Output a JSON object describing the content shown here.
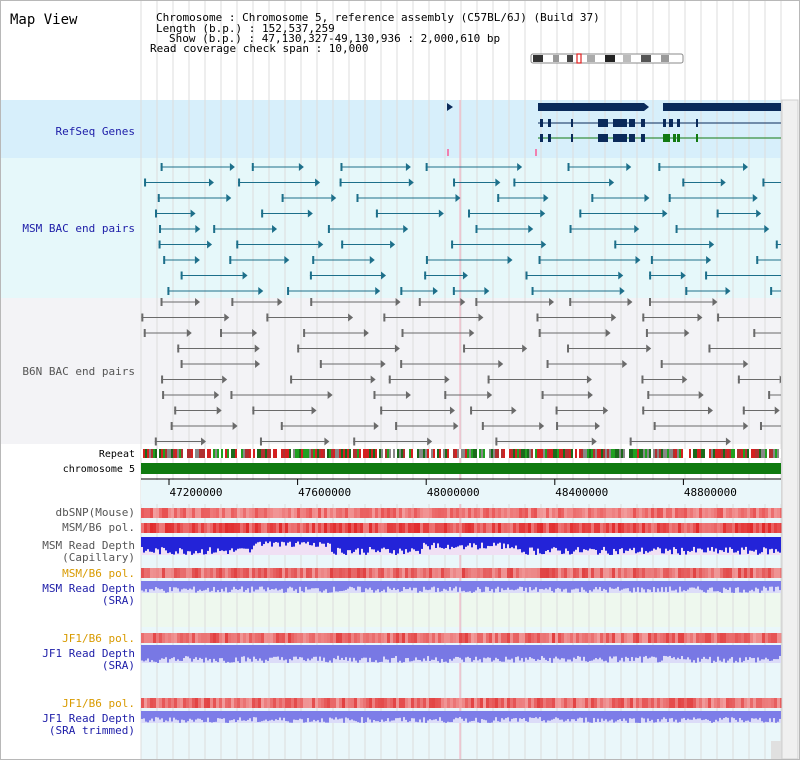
{
  "window_title": "Map View",
  "info": {
    "lines": [
      "Chromosome    : Chromosome 5, reference assembly (C57BL/6J) (Build 37)",
      "Length (b.p.) : 152,537,259",
      "Show (b.p.) : 47,130,327-49,130,936 : 2,000,610 bp",
      "Read coverage check span : 10,000"
    ]
  },
  "tracks": {
    "refseq": "RefSeq Genes",
    "msm_bac": "MSM BAC end pairs",
    "b6n_bac": "B6N BAC end pairs",
    "repeat": "Repeat",
    "chromosome": "chromosome 5",
    "dbsnp": "dbSNP(Mouse)",
    "msm_b6_pol": "MSM/B6 pol.",
    "msm_depth_cap_1": "MSM Read Depth",
    "msm_depth_cap_2": "(Capillary)",
    "msm_b6_pol_2": "MSM/B6 pol.",
    "msm_depth_sra_1": "MSM Read Depth",
    "msm_depth_sra_2": "(SRA)",
    "jf1_b6_pol": "JF1/B6 pol.",
    "jf1_depth_sra_1": "JF1 Read Depth",
    "jf1_depth_sra_2": "(SRA)",
    "jf1_b6_pol_2": "JF1/B6 pol.",
    "jf1_depth_trim_1": "JF1 Read Depth",
    "jf1_depth_trim_2": "(SRA trimmed)"
  },
  "axis_ticks": [
    "47200000",
    "47600000",
    "48000000",
    "48400000",
    "48800000"
  ],
  "colors": {
    "label_blue": "#1d1da8",
    "label_gray": "#555555",
    "label_orange": "#d89a00",
    "refseq_bg": "#d7effb",
    "msm_bg": "#e6f8fa",
    "b6n_bg": "#f3f3f6",
    "gene": "#0a2a5a",
    "msm_pair": "#1d6f8a",
    "b6n_pair": "#6a6a6a",
    "chromosome_bar": "#0f7a0f",
    "snp_red": "#e85050",
    "depth_blue": "#2b2bd8",
    "depth_sra": "#7d7de8"
  }
}
